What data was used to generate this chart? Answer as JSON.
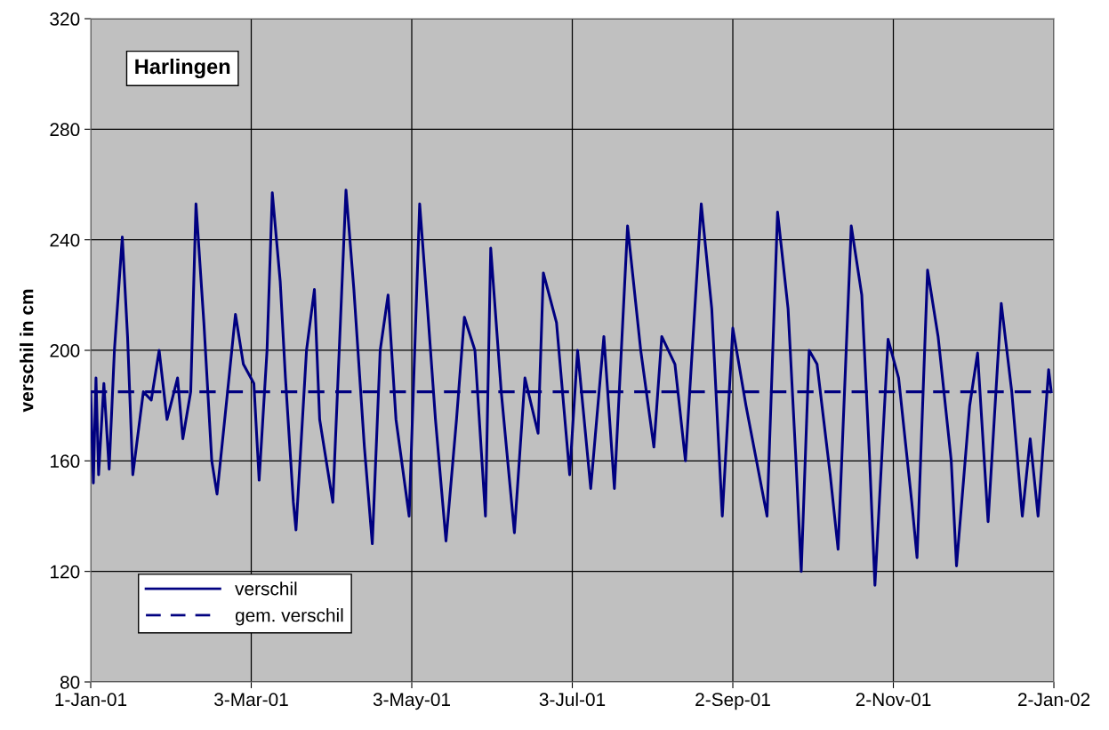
{
  "chart_data": {
    "type": "line",
    "title": "Harlingen",
    "ylabel": "verschil in cm",
    "xlim": [
      "2001-01-01",
      "2002-01-02"
    ],
    "xticks": [
      {
        "value": "2001-01-01",
        "label": "1-Jan-01"
      },
      {
        "value": "2001-03-03",
        "label": "3-Mar-01"
      },
      {
        "value": "2001-05-03",
        "label": "3-May-01"
      },
      {
        "value": "2001-07-03",
        "label": "3-Jul-01"
      },
      {
        "value": "2001-09-02",
        "label": "2-Sep-01"
      },
      {
        "value": "2001-11-02",
        "label": "2-Nov-01"
      },
      {
        "value": "2002-01-02",
        "label": "2-Jan-02"
      }
    ],
    "ylim": [
      80,
      320
    ],
    "yticks": [
      80,
      120,
      160,
      200,
      240,
      280,
      320
    ],
    "grid": true,
    "legend": "bottom left",
    "marker": "none",
    "series": [
      {
        "name": "verschil",
        "color": "#000080",
        "line_style": "solid",
        "x": [
          "2001-01-01",
          "2001-01-02",
          "2001-01-03",
          "2001-01-04",
          "2001-01-06",
          "2001-01-08",
          "2001-01-10",
          "2001-01-13",
          "2001-01-15",
          "2001-01-17",
          "2001-01-21",
          "2001-01-24",
          "2001-01-27",
          "2001-01-30",
          "2001-02-03",
          "2001-02-05",
          "2001-02-08",
          "2001-02-10",
          "2001-02-13",
          "2001-02-16",
          "2001-02-18",
          "2001-02-22",
          "2001-02-25",
          "2001-02-28",
          "2001-03-04",
          "2001-03-06",
          "2001-03-09",
          "2001-03-11",
          "2001-03-14",
          "2001-03-16",
          "2001-03-19",
          "2001-03-20",
          "2001-03-24",
          "2001-03-27",
          "2001-03-29",
          "2001-04-03",
          "2001-04-08",
          "2001-04-11",
          "2001-04-15",
          "2001-04-18",
          "2001-04-21",
          "2001-04-24",
          "2001-04-27",
          "2001-05-02",
          "2001-05-06",
          "2001-05-09",
          "2001-05-12",
          "2001-05-16",
          "2001-05-20",
          "2001-05-23",
          "2001-05-27",
          "2001-05-31",
          "2001-06-02",
          "2001-06-06",
          "2001-06-11",
          "2001-06-15",
          "2001-06-20",
          "2001-06-22",
          "2001-06-27",
          "2001-07-02",
          "2001-07-05",
          "2001-07-10",
          "2001-07-15",
          "2001-07-19",
          "2001-07-24",
          "2001-07-29",
          "2001-08-03",
          "2001-08-06",
          "2001-08-11",
          "2001-08-15",
          "2001-08-21",
          "2001-08-25",
          "2001-08-29",
          "2001-09-02",
          "2001-09-07",
          "2001-09-11",
          "2001-09-15",
          "2001-09-19",
          "2001-09-23",
          "2001-09-26",
          "2001-09-28",
          "2001-10-01",
          "2001-10-04",
          "2001-10-09",
          "2001-10-12",
          "2001-10-17",
          "2001-10-21",
          "2001-10-24",
          "2001-10-26",
          "2001-10-31",
          "2001-11-04",
          "2001-11-09",
          "2001-11-11",
          "2001-11-15",
          "2001-11-19",
          "2001-11-24",
          "2001-11-26",
          "2001-12-01",
          "2001-12-04",
          "2001-12-08",
          "2001-12-13",
          "2001-12-17",
          "2001-12-21",
          "2001-12-24",
          "2001-12-27",
          "2001-12-31",
          "2002-01-01"
        ],
        "values": [
          185,
          152,
          190,
          155,
          188,
          157,
          200,
          241,
          205,
          155,
          185,
          182,
          200,
          175,
          190,
          168,
          185,
          253,
          210,
          160,
          148,
          185,
          213,
          195,
          188,
          153,
          200,
          257,
          225,
          190,
          145,
          135,
          200,
          222,
          175,
          145,
          258,
          222,
          165,
          130,
          200,
          220,
          175,
          140,
          253,
          215,
          175,
          131,
          175,
          212,
          200,
          140,
          237,
          185,
          134,
          190,
          170,
          228,
          210,
          155,
          200,
          150,
          205,
          150,
          245,
          200,
          165,
          205,
          195,
          160,
          253,
          215,
          140,
          208,
          180,
          160,
          140,
          250,
          215,
          160,
          120,
          200,
          195,
          155,
          128,
          245,
          220,
          160,
          115,
          204,
          190,
          145,
          125,
          229,
          205,
          160,
          122,
          180,
          199,
          138,
          217,
          185,
          140,
          168,
          140,
          193,
          185
        ]
      },
      {
        "name": "gem. verschil",
        "color": "#000080",
        "line_style": "dashed",
        "x": [
          "2001-01-01",
          "2002-01-01"
        ],
        "values": [
          185,
          185
        ]
      }
    ]
  }
}
